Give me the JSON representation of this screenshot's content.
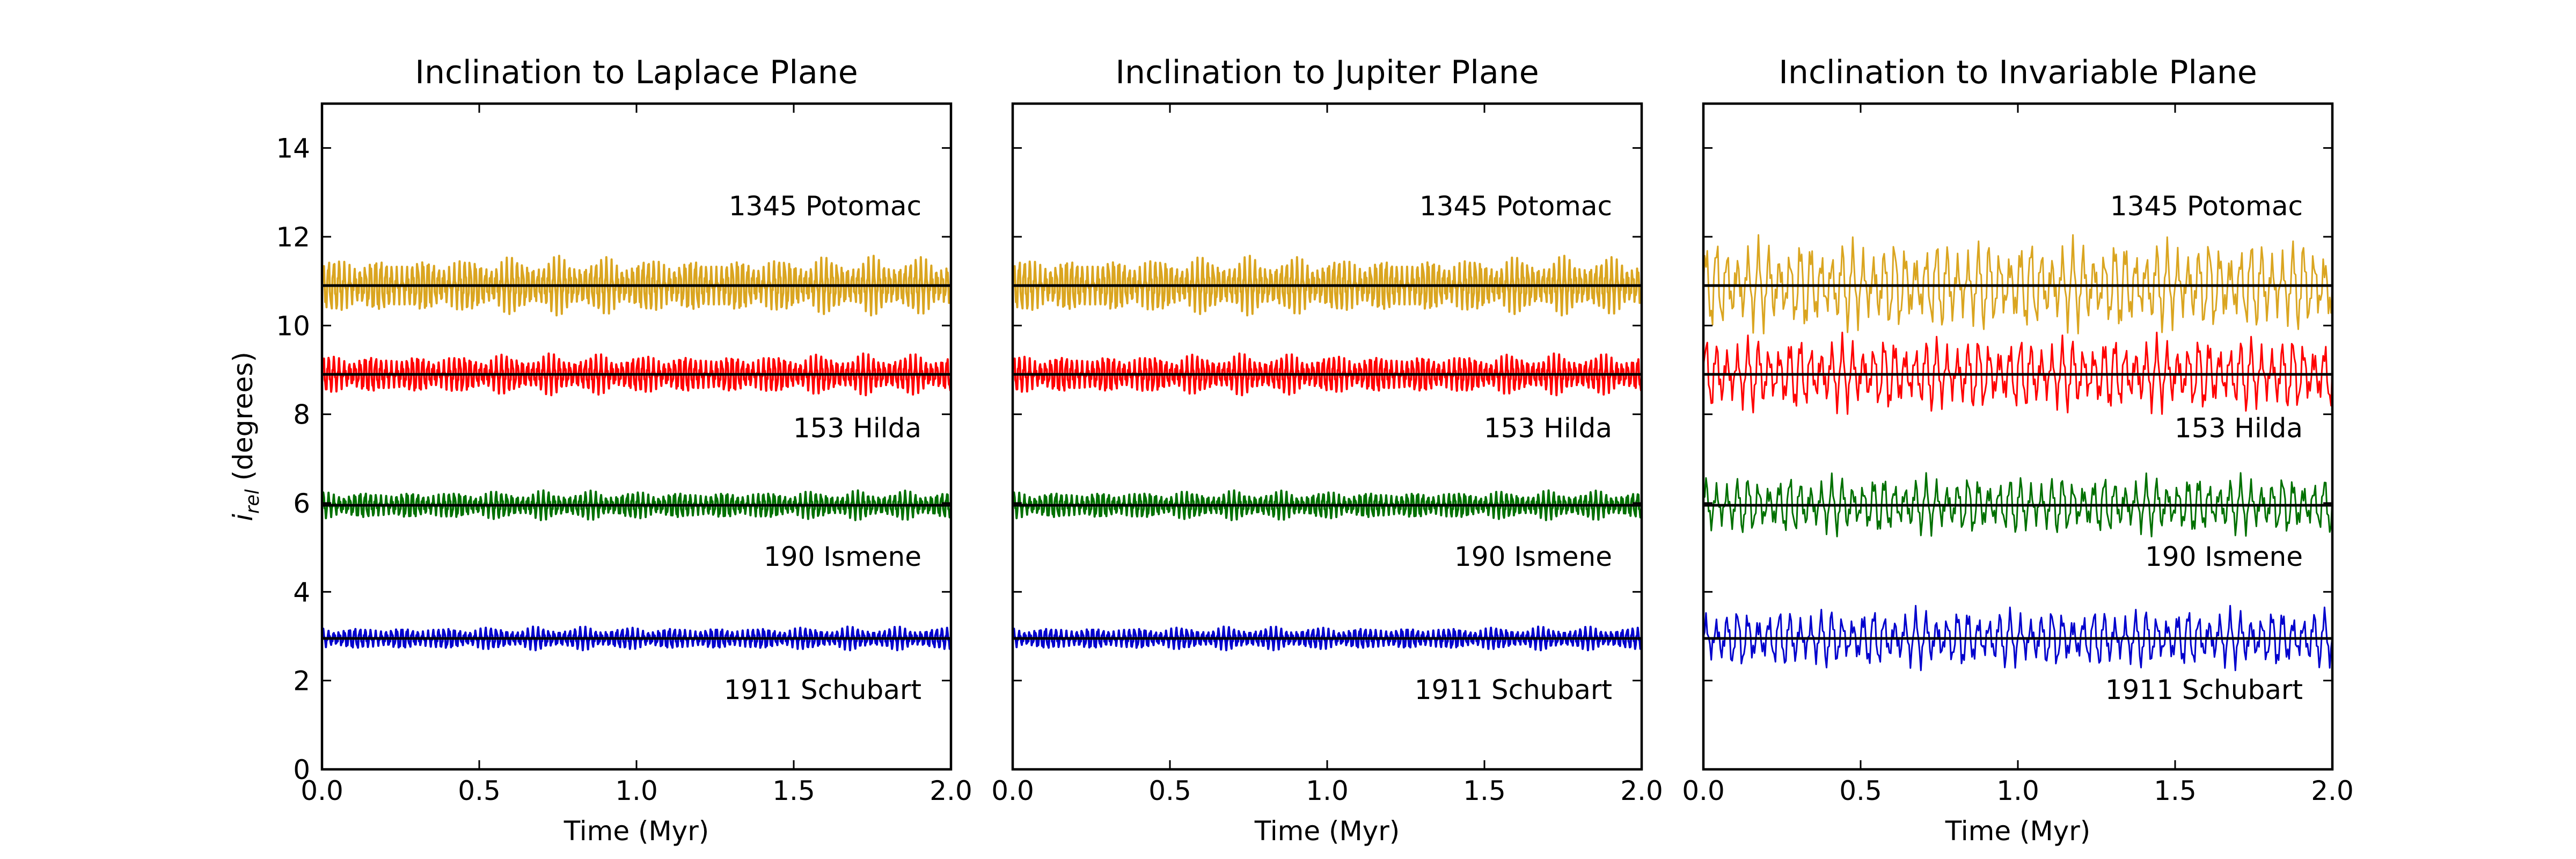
{
  "chart_data": {
    "type": "line",
    "ylabel_main": "i",
    "ylabel_sub": "rel",
    "ylabel_rest": " (degrees)",
    "ylim": [
      0,
      15
    ],
    "xlim": [
      0,
      2
    ],
    "xticks": [
      0,
      0.5,
      1,
      1.5,
      2
    ],
    "xtick_labels": [
      "0.0",
      "0.5",
      "1.0",
      "1.5",
      "2.0"
    ],
    "yticks": [
      0,
      2,
      4,
      6,
      8,
      10,
      12,
      14
    ],
    "ytick_labels": [
      "0",
      "2",
      "4",
      "6",
      "8",
      "10",
      "12",
      "14"
    ],
    "xlabel": "Time (Myr)",
    "object_labels": [
      {
        "text": "1345 Potomac",
        "y": 12.7
      },
      {
        "text": "153 Hilda",
        "y": 7.7
      },
      {
        "text": "190 Ismene",
        "y": 4.8
      },
      {
        "text": "1911 Schubart",
        "y": 1.8
      }
    ],
    "colors": {
      "Potomac": "#daa520",
      "Hilda": "#ff0000",
      "Ismene": "#007000",
      "Schubart": "#0000cd"
    },
    "panels": [
      {
        "title": "Inclination to Laplace Plane",
        "series": [
          {
            "name": "1345 Potomac",
            "color_key": "Potomac",
            "mean": 10.9,
            "amplitude": 0.5,
            "cycles": 120
          },
          {
            "name": "153 Hilda",
            "color_key": "Hilda",
            "mean": 8.9,
            "amplitude": 0.35,
            "cycles": 120
          },
          {
            "name": "190 Ismene",
            "color_key": "Ismene",
            "mean": 5.95,
            "amplitude": 0.25,
            "cycles": 120
          },
          {
            "name": "1911 Schubart",
            "color_key": "Schubart",
            "mean": 2.95,
            "amplitude": 0.2,
            "cycles": 120
          }
        ]
      },
      {
        "title": "Inclination to Jupiter Plane",
        "series": [
          {
            "name": "1345 Potomac",
            "color_key": "Potomac",
            "mean": 10.9,
            "amplitude": 0.5,
            "cycles": 120
          },
          {
            "name": "153 Hilda",
            "color_key": "Hilda",
            "mean": 8.9,
            "amplitude": 0.35,
            "cycles": 120
          },
          {
            "name": "190 Ismene",
            "color_key": "Ismene",
            "mean": 5.95,
            "amplitude": 0.25,
            "cycles": 120
          },
          {
            "name": "1911 Schubart",
            "color_key": "Schubart",
            "mean": 2.95,
            "amplitude": 0.2,
            "cycles": 120
          }
        ]
      },
      {
        "title": "Inclination to Invariable Plane",
        "series": [
          {
            "name": "1345 Potomac",
            "color_key": "Potomac",
            "mean": 10.9,
            "amplitude": 0.85,
            "cycles": 60
          },
          {
            "name": "153 Hilda",
            "color_key": "Hilda",
            "mean": 8.9,
            "amplitude": 0.7,
            "cycles": 60
          },
          {
            "name": "190 Ismene",
            "color_key": "Ismene",
            "mean": 5.95,
            "amplitude": 0.55,
            "cycles": 60
          },
          {
            "name": "1911 Schubart",
            "color_key": "Schubart",
            "mean": 2.95,
            "amplitude": 0.55,
            "cycles": 60
          }
        ]
      }
    ]
  }
}
